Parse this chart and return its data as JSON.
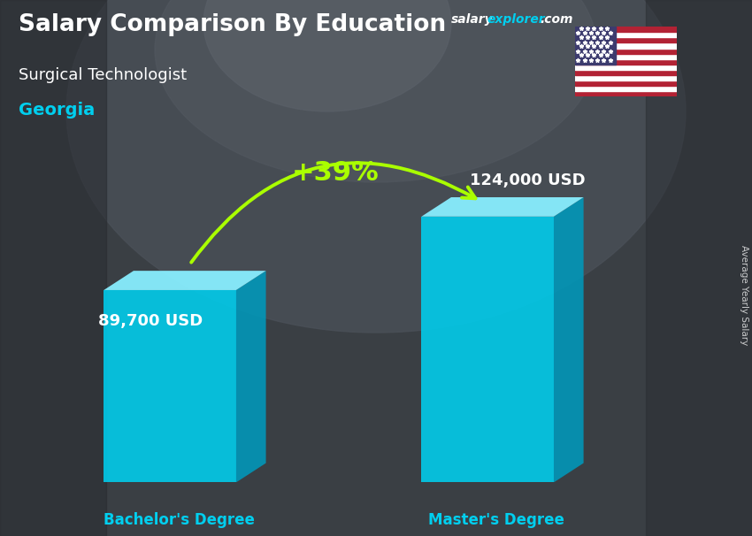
{
  "title_main": "Salary Comparison By Education",
  "title_sub": "Surgical Technologist",
  "title_location": "Georgia",
  "categories": [
    "Bachelor's Degree",
    "Master's Degree"
  ],
  "values": [
    89700,
    124000
  ],
  "value_labels": [
    "89,700 USD",
    "124,000 USD"
  ],
  "pct_change": "+39%",
  "bar_face_color": "#00CFEF",
  "bar_right_color": "#0099BB",
  "bar_top_color": "#88EEFF",
  "ylabel": "Average Yearly Salary",
  "ylim": [
    0,
    155000
  ],
  "text_color_main": "#ffffff",
  "text_color_location": "#00CFEF",
  "text_color_category": "#00CFEF",
  "text_color_pct": "#AAFF00",
  "arrow_color": "#AAFF00",
  "watermark_salary": "salary",
  "watermark_explorer": "explorer",
  "watermark_com": ".com",
  "flag_stripe_red": "#B22234",
  "flag_stripe_white": "#FFFFFF",
  "flag_canton": "#3C3B6E"
}
